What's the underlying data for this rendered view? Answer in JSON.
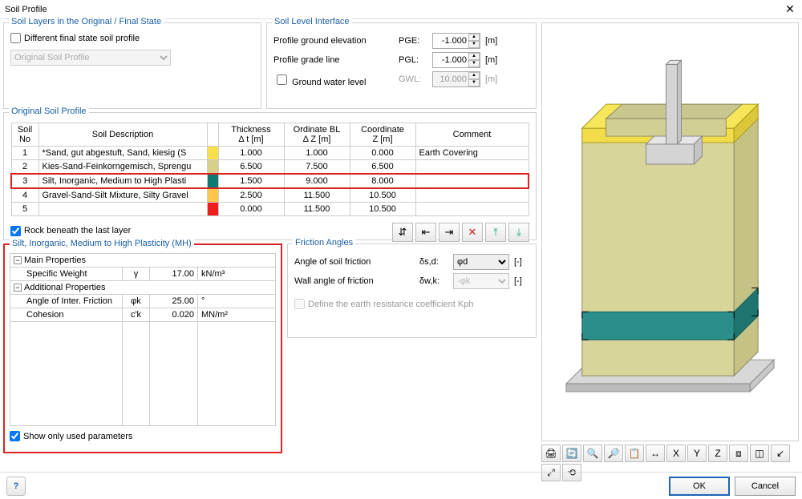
{
  "window": {
    "title": "Soil Profile"
  },
  "layers_group": {
    "title": "Soil Layers in the Original / Final State",
    "diff_checkbox_label": "Different final state soil profile",
    "diff_checked": false,
    "dropdown_value": "Original Soil Profile"
  },
  "level_group": {
    "title": "Soil Level Interface",
    "pge_label": "Profile ground elevation",
    "pge_sym": "PGE:",
    "pge_value": "-1.000",
    "pge_unit": "[m]",
    "pgl_label": "Profile grade line",
    "pgl_sym": "PGL:",
    "pgl_value": "-1.000",
    "pgl_unit": "[m]",
    "gwl_label": "Ground water level",
    "gwl_sym": "GWL:",
    "gwl_value": "10.000",
    "gwl_unit": "[m]",
    "gwl_checked": false
  },
  "profile_table": {
    "title": "Original Soil Profile",
    "headers": {
      "no": "Soil\nNo",
      "desc": "Soil Description",
      "thick": "Thickness\nΔ t [m]",
      "ord": "Ordinate BL\nΔ Z [m]",
      "coord": "Coordinate\nZ [m]",
      "comment": "Comment"
    },
    "rows": [
      {
        "no": "1",
        "desc": "*Sand, gut abgestuft, Sand, kiesig (S",
        "color": "#f7e04a",
        "thick": "1.000",
        "ord": "1.000",
        "coord": "0.000",
        "comment": "Earth Covering",
        "selected": false
      },
      {
        "no": "2",
        "desc": "Kies-Sand-Feinkorngemisch, Sprengu",
        "color": "#d8d08a",
        "thick": "6.500",
        "ord": "7.500",
        "coord": "6.500",
        "comment": "",
        "selected": false
      },
      {
        "no": "3",
        "desc": "Silt, Inorganic, Medium to High Plasti",
        "color": "#0e7b72",
        "thick": "1.500",
        "ord": "9.000",
        "coord": "8.000",
        "comment": "",
        "selected": true
      },
      {
        "no": "4",
        "desc": "Gravel-Sand-Silt Mixture, Silty Gravel",
        "color": "#ffc64a",
        "thick": "2.500",
        "ord": "11.500",
        "coord": "10.500",
        "comment": "",
        "selected": false
      },
      {
        "no": "5",
        "desc": "",
        "color": "#ee1c1c",
        "thick": "0.000",
        "ord": "11.500",
        "coord": "10.500",
        "comment": "",
        "selected": false
      }
    ],
    "rock_label": "Rock beneath the last layer",
    "rock_checked": true
  },
  "properties": {
    "title": "Silt, Inorganic, Medium to High Plasticity (MH)",
    "main_label": "Main Properties",
    "specific_weight_label": "Specific Weight",
    "specific_weight_sym": "γ",
    "specific_weight_val": "17.00",
    "specific_weight_unit": "kN/m³",
    "additional_label": "Additional Properties",
    "angle_label": "Angle of Inter. Friction",
    "angle_sym": "φk",
    "angle_val": "25.00",
    "angle_unit": "°",
    "cohesion_label": "Cohesion",
    "cohesion_sym": "c'k",
    "cohesion_val": "0.020",
    "cohesion_unit": "MN/m²",
    "show_only_label": "Show only used parameters",
    "show_only_checked": true
  },
  "friction": {
    "title": "Friction Angles",
    "soil_label": "Angle of soil friction",
    "soil_sym": "δs,d:",
    "soil_val": "φd",
    "soil_unit": "[-]",
    "wall_label": "Wall angle of friction",
    "wall_sym": "δw,k:",
    "wall_val": "-φk",
    "wall_unit": "[-]",
    "kph_label": "Define the earth resistance coefficient Kph",
    "kph_checked": false
  },
  "buttons": {
    "ok": "OK",
    "cancel": "Cancel"
  },
  "toolbar_icons": {
    "b1": "⇵",
    "b2": "⇤",
    "b3": "⇥",
    "b4": "✕",
    "b5": "⤒",
    "b6": "⤓"
  },
  "view_icons": [
    "🖨",
    "🔄",
    "🔍",
    "🔎",
    "📋",
    "↔",
    "X",
    "Y",
    "Z",
    "⧈",
    "◫",
    "↙",
    "⤢",
    "⟲"
  ]
}
